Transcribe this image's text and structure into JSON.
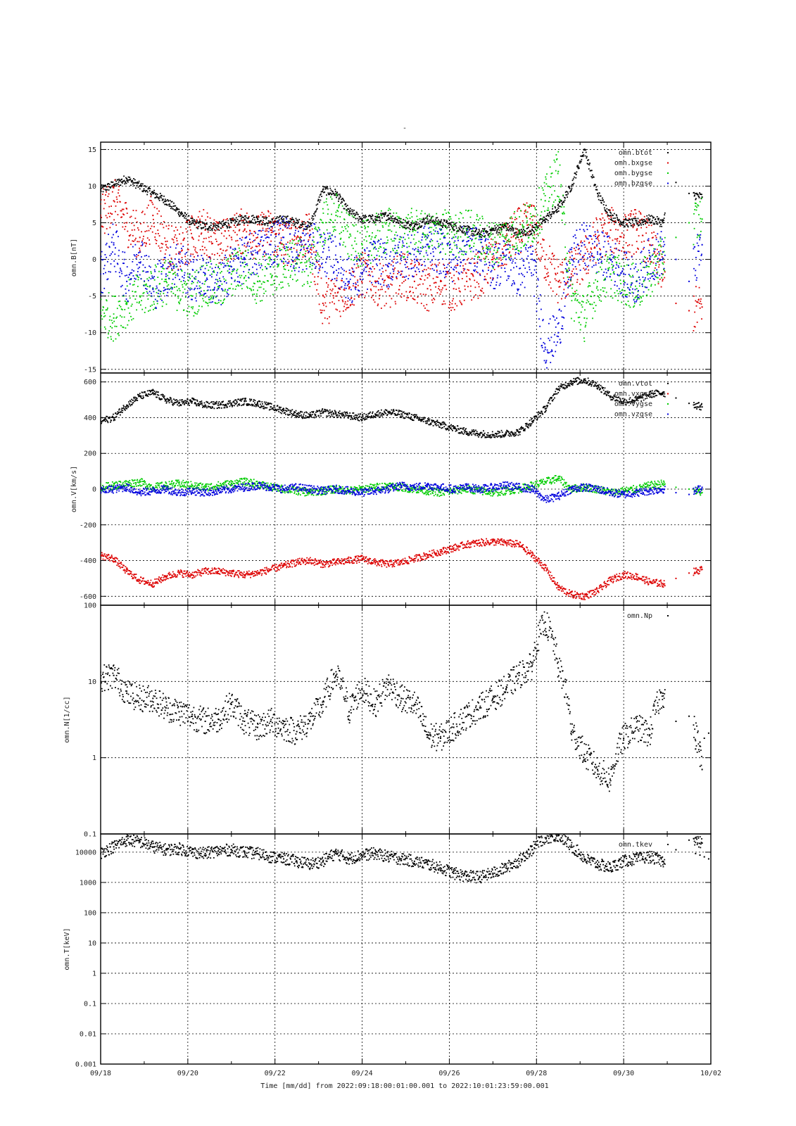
{
  "figure": {
    "title": "-",
    "xlabel": "Time [mm/dd]  from 2022:09:18:00:01:00.001  to  2022:10:01:23:59:00.001",
    "x_ticks": [
      "09/18",
      "09/20",
      "09/22",
      "09/24",
      "09/26",
      "09/28",
      "09/30",
      "10/02"
    ]
  },
  "colors": {
    "black": "#000000",
    "red": "#dd0000",
    "green": "#00cc00",
    "blue": "#0000dd"
  },
  "chart_data": [
    {
      "type": "scatter",
      "ylabel": "omn.B[nT]",
      "ylim": [
        -15.5,
        16
      ],
      "yscale": "linear",
      "y_ticks": [
        -15,
        -10,
        -5,
        0,
        5,
        10,
        15
      ],
      "y_tick_labels": [
        "-15",
        "-10",
        "-5",
        "0",
        "5",
        "10",
        "15"
      ],
      "grid": true,
      "legend": "top-right",
      "series": [
        {
          "name": "omn.btot",
          "color": "#000000",
          "x": [
            0,
            0.3,
            0.6,
            0.9,
            1.2,
            1.5,
            1.8,
            2.1,
            2.4,
            2.7,
            3.0,
            3.3,
            3.6,
            3.9,
            4.2,
            4.5,
            4.8,
            5.1,
            5.4,
            5.7,
            6.0,
            6.3,
            6.6,
            6.9,
            7.2,
            7.5,
            7.8,
            8.1,
            8.4,
            8.7,
            9.0,
            9.3,
            9.6,
            9.9,
            10.2,
            10.5,
            10.8,
            11.1,
            11.4,
            11.7,
            12.0,
            12.3,
            12.6,
            12.9,
            13.2,
            13.5,
            13.8
          ],
          "y": [
            9.5,
            10.2,
            11,
            10,
            9,
            8,
            6.5,
            5,
            4.5,
            4.5,
            5,
            5.5,
            5.5,
            5,
            5.5,
            5,
            4.5,
            9.5,
            9,
            6.5,
            5.5,
            5.5,
            6,
            5,
            4.5,
            5.5,
            5,
            4.5,
            4,
            3.5,
            4,
            4.5,
            3.5,
            4,
            5.5,
            7,
            10,
            15,
            9,
            6,
            5,
            5,
            5.5,
            5,
            10.5,
            9,
            8.5
          ]
        },
        {
          "name": "omn.bxgse",
          "color": "#dd0000",
          "x": [
            0,
            0.3,
            0.6,
            0.9,
            1.2,
            1.5,
            1.8,
            2.1,
            2.4,
            2.7,
            3.0,
            3.3,
            3.6,
            3.9,
            4.2,
            4.5,
            4.8,
            5.1,
            5.4,
            5.7,
            6.0,
            6.3,
            6.6,
            6.9,
            7.2,
            7.5,
            7.8,
            8.1,
            8.4,
            8.7,
            9.0,
            9.3,
            9.6,
            9.9,
            10.2,
            10.5,
            10.8,
            11.1,
            11.4,
            11.7,
            12.0,
            12.3,
            12.6,
            12.9,
            13.2,
            13.5,
            13.8
          ],
          "y": [
            6,
            8,
            5,
            3,
            6,
            2,
            1,
            3,
            4,
            2,
            3,
            4,
            3,
            4,
            2,
            3,
            3,
            -6,
            -5,
            -4,
            -2,
            -3,
            -4,
            -2,
            -3,
            -4,
            -3,
            -4,
            -3,
            -2,
            0,
            2,
            4,
            5,
            0,
            -3,
            -2,
            0,
            3,
            4,
            3,
            4,
            2,
            -2,
            -6,
            -7,
            -6.5
          ]
        },
        {
          "name": "omn.bygse",
          "color": "#00cc00",
          "x": [
            0,
            0.3,
            0.6,
            0.9,
            1.2,
            1.5,
            1.8,
            2.1,
            2.4,
            2.7,
            3.0,
            3.3,
            3.6,
            3.9,
            4.2,
            4.5,
            4.8,
            5.1,
            5.4,
            5.7,
            6.0,
            6.3,
            6.6,
            6.9,
            7.2,
            7.5,
            7.8,
            8.1,
            8.4,
            8.7,
            9.0,
            9.3,
            9.6,
            9.9,
            10.2,
            10.5,
            10.8,
            11.1,
            11.4,
            11.7,
            12.0,
            12.3,
            12.6,
            12.9,
            13.2,
            13.5,
            13.8
          ],
          "y": [
            -7,
            -8,
            -6,
            -5,
            -4,
            -3,
            -4,
            -5,
            -3,
            -4,
            -2,
            -1,
            -3,
            -2,
            -1,
            0,
            -1,
            5,
            6,
            3,
            2,
            3,
            4,
            3,
            4,
            3,
            4,
            3,
            4,
            3,
            2,
            3,
            4,
            5,
            8,
            12,
            -5,
            -8,
            -3,
            -2,
            -3,
            -4,
            -2,
            0,
            3,
            5,
            5.5
          ]
        },
        {
          "name": "omn.bzgse",
          "color": "#0000dd",
          "x": [
            0,
            0.3,
            0.6,
            0.9,
            1.2,
            1.5,
            1.8,
            2.1,
            2.4,
            2.7,
            3.0,
            3.3,
            3.6,
            3.9,
            4.2,
            4.5,
            4.8,
            5.1,
            5.4,
            5.7,
            6.0,
            6.3,
            6.6,
            6.9,
            7.2,
            7.5,
            7.8,
            8.1,
            8.4,
            8.7,
            9.0,
            9.3,
            9.6,
            9.9,
            10.2,
            10.5,
            10.8,
            11.1,
            11.4,
            11.7,
            12.0,
            12.3,
            12.6,
            12.9,
            13.2,
            13.5,
            13.8
          ],
          "y": [
            -2,
            2,
            -3,
            1,
            -4,
            -2,
            0,
            -3,
            -2,
            -4,
            -1,
            0,
            1,
            2,
            3,
            1,
            2,
            1,
            0,
            -3,
            -2,
            0,
            -1,
            1,
            0,
            2,
            1,
            0,
            2,
            1,
            -1,
            0,
            -2,
            0,
            -12,
            -10,
            0,
            2,
            1,
            0,
            -2,
            -3,
            0,
            1,
            0,
            -3,
            2
          ]
        }
      ]
    },
    {
      "type": "scatter",
      "ylabel": "omn.V[km/s]",
      "ylim": [
        -650,
        650
      ],
      "yscale": "linear",
      "y_ticks": [
        -600,
        -400,
        -200,
        0,
        200,
        400,
        600
      ],
      "y_tick_labels": [
        "-600",
        "-400",
        "-200",
        "0",
        "200",
        "400",
        "600"
      ],
      "grid": true,
      "legend": "top-right",
      "series": [
        {
          "name": "omn.vtot",
          "color": "#000000",
          "x": [
            0,
            0.3,
            0.6,
            0.9,
            1.2,
            1.5,
            1.8,
            2.1,
            2.4,
            2.7,
            3.0,
            3.3,
            3.6,
            3.9,
            4.2,
            4.5,
            4.8,
            5.1,
            5.4,
            5.7,
            6.0,
            6.3,
            6.6,
            6.9,
            7.2,
            7.5,
            7.8,
            8.1,
            8.4,
            8.7,
            9.0,
            9.3,
            9.6,
            9.9,
            10.2,
            10.5,
            10.8,
            11.1,
            11.4,
            11.7,
            12.0,
            12.3,
            12.6,
            12.9,
            13.2,
            13.5,
            13.8
          ],
          "y": [
            380,
            400,
            470,
            520,
            540,
            500,
            480,
            490,
            470,
            470,
            480,
            490,
            480,
            460,
            440,
            420,
            410,
            430,
            420,
            410,
            400,
            420,
            430,
            420,
            400,
            380,
            360,
            340,
            320,
            310,
            305,
            310,
            320,
            380,
            450,
            560,
            600,
            610,
            580,
            520,
            490,
            500,
            530,
            540,
            510,
            480,
            460
          ]
        },
        {
          "name": "omn.vxgse",
          "color": "#dd0000",
          "x": [
            0,
            0.3,
            0.6,
            0.9,
            1.2,
            1.5,
            1.8,
            2.1,
            2.4,
            2.7,
            3.0,
            3.3,
            3.6,
            3.9,
            4.2,
            4.5,
            4.8,
            5.1,
            5.4,
            5.7,
            6.0,
            6.3,
            6.6,
            6.9,
            7.2,
            7.5,
            7.8,
            8.1,
            8.4,
            8.7,
            9.0,
            9.3,
            9.6,
            9.9,
            10.2,
            10.5,
            10.8,
            11.1,
            11.4,
            11.7,
            12.0,
            12.3,
            12.6,
            12.9,
            13.2,
            13.5,
            13.8
          ],
          "y": [
            -370,
            -390,
            -460,
            -510,
            -530,
            -490,
            -470,
            -480,
            -460,
            -460,
            -470,
            -480,
            -470,
            -450,
            -430,
            -410,
            -400,
            -420,
            -410,
            -400,
            -390,
            -410,
            -420,
            -410,
            -390,
            -370,
            -350,
            -330,
            -310,
            -300,
            -295,
            -300,
            -310,
            -370,
            -440,
            -550,
            -590,
            -600,
            -570,
            -510,
            -480,
            -490,
            -520,
            -530,
            -500,
            -470,
            -450
          ]
        },
        {
          "name": "omn.vygse",
          "color": "#00cc00",
          "x": [
            0,
            0.3,
            0.6,
            0.9,
            1.2,
            1.5,
            1.8,
            2.1,
            2.4,
            2.7,
            3.0,
            3.3,
            3.6,
            3.9,
            4.2,
            4.5,
            4.8,
            5.1,
            5.4,
            5.7,
            6.0,
            6.3,
            6.6,
            6.9,
            7.2,
            7.5,
            7.8,
            8.1,
            8.4,
            8.7,
            9.0,
            9.3,
            9.6,
            9.9,
            10.2,
            10.5,
            10.8,
            11.1,
            11.4,
            11.7,
            12.0,
            12.3,
            12.6,
            12.9,
            13.2,
            13.5,
            13.8
          ],
          "y": [
            10,
            20,
            30,
            40,
            10,
            20,
            30,
            20,
            10,
            20,
            30,
            40,
            30,
            10,
            0,
            -10,
            -20,
            -10,
            0,
            -10,
            0,
            10,
            20,
            10,
            0,
            -10,
            -20,
            -10,
            0,
            -10,
            -20,
            -10,
            0,
            20,
            40,
            60,
            0,
            10,
            0,
            -20,
            -10,
            0,
            20,
            30,
            10,
            0,
            -20
          ]
        },
        {
          "name": "omn.vzgse",
          "color": "#0000dd",
          "x": [
            0,
            0.3,
            0.6,
            0.9,
            1.2,
            1.5,
            1.8,
            2.1,
            2.4,
            2.7,
            3.0,
            3.3,
            3.6,
            3.9,
            4.2,
            4.5,
            4.8,
            5.1,
            5.4,
            5.7,
            6.0,
            6.3,
            6.6,
            6.9,
            7.2,
            7.5,
            7.8,
            8.1,
            8.4,
            8.7,
            9.0,
            9.3,
            9.6,
            9.9,
            10.2,
            10.5,
            10.8,
            11.1,
            11.4,
            11.7,
            12.0,
            12.3,
            12.6,
            12.9,
            13.2,
            13.5,
            13.8
          ],
          "y": [
            -10,
            0,
            10,
            -20,
            -10,
            0,
            -20,
            -10,
            -20,
            -10,
            0,
            10,
            20,
            10,
            0,
            10,
            0,
            -10,
            0,
            -10,
            -20,
            -10,
            0,
            20,
            10,
            20,
            10,
            0,
            10,
            0,
            10,
            20,
            10,
            0,
            -60,
            -40,
            0,
            10,
            0,
            -20,
            -30,
            -20,
            -10,
            0,
            -20,
            -30,
            10
          ]
        }
      ]
    },
    {
      "type": "scatter",
      "ylabel": "omn.N[1/cc]",
      "ylim": [
        0.1,
        100
      ],
      "yscale": "log",
      "y_ticks": [
        0.1,
        1,
        10,
        100
      ],
      "y_tick_labels": [
        "0.1",
        "1",
        "10",
        "100"
      ],
      "grid": true,
      "legend": "top-right",
      "series": [
        {
          "name": "omn.Np",
          "color": "#000000",
          "x": [
            0,
            0.3,
            0.6,
            0.9,
            1.2,
            1.5,
            1.8,
            2.1,
            2.4,
            2.7,
            3.0,
            3.3,
            3.6,
            3.9,
            4.2,
            4.5,
            4.8,
            5.1,
            5.4,
            5.7,
            6.0,
            6.3,
            6.6,
            6.9,
            7.2,
            7.5,
            7.8,
            8.1,
            8.4,
            8.7,
            9.0,
            9.3,
            9.6,
            9.9,
            10.2,
            10.5,
            10.8,
            11.1,
            11.4,
            11.7,
            12.0,
            12.3,
            12.6,
            12.9,
            13.2,
            13.5,
            13.8
          ],
          "y": [
            11,
            12,
            7,
            6,
            6,
            4.5,
            4,
            3.5,
            3,
            3.2,
            5,
            3,
            2.5,
            3,
            2.5,
            2.2,
            3,
            5,
            12,
            4,
            8,
            5,
            9,
            6,
            5,
            2,
            1.8,
            2.5,
            3.5,
            4.5,
            6,
            8,
            12,
            16,
            60,
            15,
            2.2,
            1.1,
            0.7,
            0.5,
            1.8,
            2.5,
            2,
            7,
            3,
            3.5,
            0.7
          ]
        },
        {
          "name": "",
          "color": "#000000",
          "x": [
            13.65,
            13.75,
            13.85,
            13.95
          ],
          "y": [
            1.3,
            1.6,
            1.8,
            2.1
          ]
        }
      ]
    },
    {
      "type": "scatter",
      "ylabel": "omn.T[keV]",
      "ylim": [
        0.001,
        40000
      ],
      "yscale": "log",
      "y_ticks": [
        0.001,
        0.01,
        0.1,
        1,
        10,
        100,
        1000,
        10000
      ],
      "y_tick_labels": [
        "0.001",
        "0.01",
        "0.1",
        "1",
        "10",
        "100",
        "1000",
        "10000"
      ],
      "grid": true,
      "legend": "top-right",
      "series": [
        {
          "name": "omn.tkev",
          "color": "#000000",
          "x": [
            0,
            0.3,
            0.6,
            0.9,
            1.2,
            1.5,
            1.8,
            2.1,
            2.4,
            2.7,
            3.0,
            3.3,
            3.6,
            3.9,
            4.2,
            4.5,
            4.8,
            5.1,
            5.4,
            5.7,
            6.0,
            6.3,
            6.6,
            6.9,
            7.2,
            7.5,
            7.8,
            8.1,
            8.4,
            8.7,
            9.0,
            9.3,
            9.6,
            9.9,
            10.2,
            10.5,
            10.8,
            11.1,
            11.4,
            11.7,
            12.0,
            12.3,
            12.6,
            12.9,
            13.2,
            13.5,
            13.8
          ],
          "y": [
            9000,
            15000,
            25000,
            22000,
            15000,
            12000,
            13000,
            10000,
            9000,
            11000,
            12000,
            10000,
            9000,
            7000,
            6000,
            5000,
            4000,
            5000,
            9000,
            6000,
            8000,
            9000,
            7000,
            6000,
            5000,
            4000,
            3000,
            2000,
            1600,
            1500,
            2000,
            3000,
            5000,
            12000,
            30000,
            35000,
            15000,
            6000,
            4000,
            3000,
            5000,
            6000,
            7000,
            5000,
            12000,
            25000,
            20000
          ]
        },
        {
          "name": "",
          "color": "#000000",
          "x": [
            13.65,
            13.75,
            13.85,
            13.95
          ],
          "y": [
            9000,
            8000,
            7000,
            6000
          ]
        }
      ]
    }
  ]
}
